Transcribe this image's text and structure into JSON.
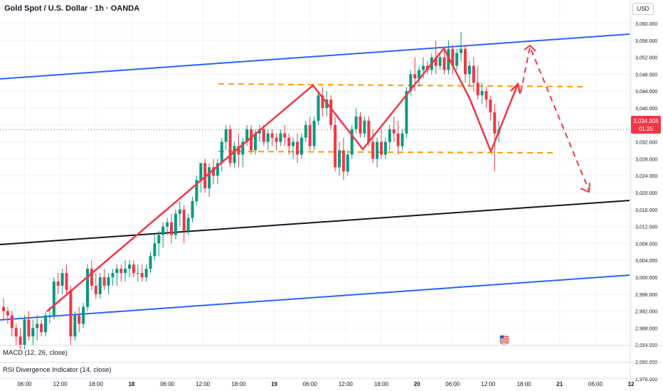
{
  "header": {
    "title": "Gold Spot / U.S. Dollar · 1h · OANDA",
    "currency": "USD"
  },
  "price_tag": {
    "price": "3,034.905",
    "countdown": "01:25"
  },
  "indicators": [
    {
      "label": "MACD (12, 26, close)"
    },
    {
      "label": "RSI Divergence Indicator (14, close)"
    }
  ],
  "colors": {
    "up": "#089981",
    "down": "#f23645",
    "channel": "#2962ff",
    "midline": "#131722",
    "support_resistance": "#ff9800",
    "projection": "#f23645",
    "grid": "#f0f3fa"
  },
  "event_icon": "us-flag-icon",
  "chart_data": {
    "type": "candlestick",
    "title": "Gold Spot / U.S. Dollar · 1h · OANDA",
    "y_axis": {
      "ticks": [
        "3,060.000",
        "3,056.000",
        "3,052.000",
        "3,048.000",
        "3,044.000",
        "3,040.000",
        "3,036.000",
        "3,032.000",
        "3,028.000",
        "3,024.000",
        "3,020.000",
        "3,016.000",
        "3,012.000",
        "3,008.000",
        "3,004.000",
        "3,000.000",
        "2,996.000",
        "2,992.000",
        "2,988.000",
        "2,984.000",
        "2,980.000",
        "2,976.000"
      ],
      "range": [
        2975,
        3062
      ]
    },
    "x_axis": {
      "ticks": [
        {
          "label": "06:00",
          "idx": 5
        },
        {
          "label": "12:00",
          "idx": 13.5
        },
        {
          "label": "18:00",
          "idx": 22
        },
        {
          "label": "18",
          "idx": 30.5
        },
        {
          "label": "06:00",
          "idx": 39
        },
        {
          "label": "12:00",
          "idx": 47.5
        },
        {
          "label": "18:00",
          "idx": 56
        },
        {
          "label": "19",
          "idx": 64.5
        },
        {
          "label": "06:00",
          "idx": 73
        },
        {
          "label": "12:00",
          "idx": 81.5
        },
        {
          "label": "18:00",
          "idx": 90
        },
        {
          "label": "20",
          "idx": 98.5
        },
        {
          "label": "06:00",
          "idx": 107
        },
        {
          "label": "12:00",
          "idx": 115.5
        },
        {
          "label": "18:00",
          "idx": 124
        },
        {
          "label": "21",
          "idx": 132.5
        },
        {
          "label": "06:00",
          "idx": 141
        },
        {
          "label": "12",
          "idx": 149.5
        }
      ]
    },
    "current_price": 3034.905,
    "ohlc": [
      [
        2993,
        2995,
        2990,
        2992
      ],
      [
        2992,
        2993,
        2989,
        2991
      ],
      [
        2991,
        2992,
        2986,
        2988
      ],
      [
        2988,
        2989,
        2984,
        2986
      ],
      [
        2986,
        2988,
        2983,
        2984
      ],
      [
        2984,
        2991,
        2983,
        2990
      ],
      [
        2990,
        2992,
        2985,
        2986
      ],
      [
        2986,
        2990,
        2984,
        2988
      ],
      [
        2988,
        2991,
        2985,
        2989
      ],
      [
        2989,
        2990,
        2986,
        2987
      ],
      [
        2987,
        2992,
        2986,
        2991
      ],
      [
        2991,
        2993,
        2989,
        2991
      ],
      [
        2991,
        3000,
        2990,
        2999
      ],
      [
        2999,
        3001,
        2996,
        2998
      ],
      [
        2998,
        3002,
        2996,
        3001
      ],
      [
        3001,
        3003,
        2996,
        2997
      ],
      [
        2997,
        2998,
        2984,
        2986
      ],
      [
        2986,
        2992,
        2985,
        2991
      ],
      [
        2991,
        2993,
        2987,
        2989
      ],
      [
        2989,
        2994,
        2988,
        2993
      ],
      [
        2993,
        3003,
        2992,
        3002
      ],
      [
        3002,
        3004,
        2997,
        2998
      ],
      [
        2998,
        3001,
        2995,
        2996
      ],
      [
        2996,
        3001,
        2995,
        3000
      ],
      [
        3000,
        3002,
        2997,
        2998
      ],
      [
        2998,
        3001,
        2996,
        3000
      ],
      [
        3000,
        3002,
        2998,
        3001
      ],
      [
        3001,
        3003,
        2998,
        3002
      ],
      [
        3002,
        3003,
        2999,
        3001
      ],
      [
        3001,
        3004,
        2999,
        3002
      ],
      [
        3002,
        3004,
        3000,
        3003
      ],
      [
        3003,
        3004,
        3000,
        3001
      ],
      [
        3001,
        3003,
        2999,
        3001
      ],
      [
        3001,
        3003,
        2999,
        3000
      ],
      [
        3000,
        3003,
        2999,
        3002
      ],
      [
        3002,
        3006,
        3001,
        3005
      ],
      [
        3005,
        3010,
        3004,
        3008
      ],
      [
        3008,
        3011,
        3005,
        3010
      ],
      [
        3010,
        3013,
        3007,
        3012
      ],
      [
        3012,
        3014,
        3010,
        3013
      ],
      [
        3013,
        3015,
        3008,
        3010
      ],
      [
        3010,
        3016,
        3009,
        3015
      ],
      [
        3015,
        3018,
        3012,
        3016
      ],
      [
        3016,
        3017,
        3008,
        3011
      ],
      [
        3011,
        3015,
        3010,
        3014
      ],
      [
        3014,
        3019,
        3013,
        3018
      ],
      [
        3018,
        3024,
        3017,
        3023
      ],
      [
        3023,
        3027,
        3020,
        3027
      ],
      [
        3027,
        3028,
        3020,
        3021
      ],
      [
        3021,
        3027,
        3019,
        3026
      ],
      [
        3026,
        3028,
        3022,
        3024
      ],
      [
        3024,
        3028,
        3022,
        3027
      ],
      [
        3027,
        3033,
        3025,
        3032
      ],
      [
        3032,
        3036,
        3030,
        3035
      ],
      [
        3035,
        3036,
        3026,
        3027
      ],
      [
        3027,
        3032,
        3026,
        3031
      ],
      [
        3031,
        3034,
        3026,
        3029
      ],
      [
        3029,
        3033,
        3026,
        3032
      ],
      [
        3032,
        3036,
        3031,
        3035
      ],
      [
        3035,
        3036,
        3029,
        3030
      ],
      [
        3030,
        3035,
        3029,
        3034
      ],
      [
        3034,
        3036,
        3032,
        3035
      ],
      [
        3035,
        3036,
        3031,
        3032
      ],
      [
        3032,
        3035,
        3030,
        3034
      ],
      [
        3034,
        3035,
        3031,
        3033
      ],
      [
        3033,
        3034,
        3030,
        3032
      ],
      [
        3032,
        3035,
        3031,
        3034
      ],
      [
        3034,
        3036,
        3031,
        3033
      ],
      [
        3033,
        3034,
        3029,
        3031
      ],
      [
        3031,
        3033,
        3028,
        3032
      ],
      [
        3032,
        3034,
        3027,
        3029
      ],
      [
        3029,
        3034,
        3028,
        3033
      ],
      [
        3033,
        3037,
        3032,
        3036
      ],
      [
        3036,
        3038,
        3030,
        3031
      ],
      [
        3031,
        3038,
        3030,
        3037
      ],
      [
        3037,
        3044,
        3036,
        3043
      ],
      [
        3043,
        3045,
        3038,
        3040
      ],
      [
        3040,
        3044,
        3038,
        3042
      ],
      [
        3042,
        3043,
        3035,
        3036
      ],
      [
        3036,
        3038,
        3025,
        3026
      ],
      [
        3026,
        3032,
        3024,
        3030
      ],
      [
        3030,
        3033,
        3023,
        3025
      ],
      [
        3025,
        3030,
        3024,
        3029
      ],
      [
        3029,
        3036,
        3028,
        3035
      ],
      [
        3035,
        3040,
        3034,
        3038
      ],
      [
        3038,
        3039,
        3033,
        3034
      ],
      [
        3034,
        3038,
        3033,
        3037
      ],
      [
        3037,
        3038,
        3031,
        3032
      ],
      [
        3032,
        3035,
        3027,
        3028
      ],
      [
        3028,
        3033,
        3026,
        3032
      ],
      [
        3032,
        3035,
        3028,
        3029
      ],
      [
        3029,
        3033,
        3028,
        3032
      ],
      [
        3032,
        3036,
        3030,
        3035
      ],
      [
        3035,
        3038,
        3032,
        3034
      ],
      [
        3034,
        3037,
        3029,
        3031
      ],
      [
        3031,
        3035,
        3030,
        3034
      ],
      [
        3034,
        3045,
        3033,
        3044
      ],
      [
        3044,
        3049,
        3043,
        3048
      ],
      [
        3048,
        3052,
        3044,
        3047
      ],
      [
        3047,
        3050,
        3045,
        3049
      ],
      [
        3049,
        3052,
        3047,
        3050
      ],
      [
        3050,
        3051,
        3048,
        3049
      ],
      [
        3049,
        3053,
        3048,
        3052
      ],
      [
        3052,
        3056,
        3048,
        3050
      ],
      [
        3050,
        3053,
        3049,
        3052
      ],
      [
        3052,
        3054,
        3048,
        3049
      ],
      [
        3049,
        3056,
        3048,
        3054
      ],
      [
        3054,
        3055,
        3048,
        3050
      ],
      [
        3050,
        3054,
        3049,
        3053
      ],
      [
        3053,
        3058,
        3051,
        3054
      ],
      [
        3054,
        3055,
        3046,
        3048
      ],
      [
        3048,
        3051,
        3045,
        3050
      ],
      [
        3050,
        3052,
        3044,
        3046
      ],
      [
        3046,
        3050,
        3042,
        3043
      ],
      [
        3043,
        3046,
        3041,
        3044
      ],
      [
        3044,
        3045,
        3040,
        3042
      ],
      [
        3042,
        3043,
        3037,
        3039
      ],
      [
        3039,
        3041,
        3025,
        3034
      ],
      [
        3034,
        3037,
        3032,
        3035
      ]
    ]
  }
}
